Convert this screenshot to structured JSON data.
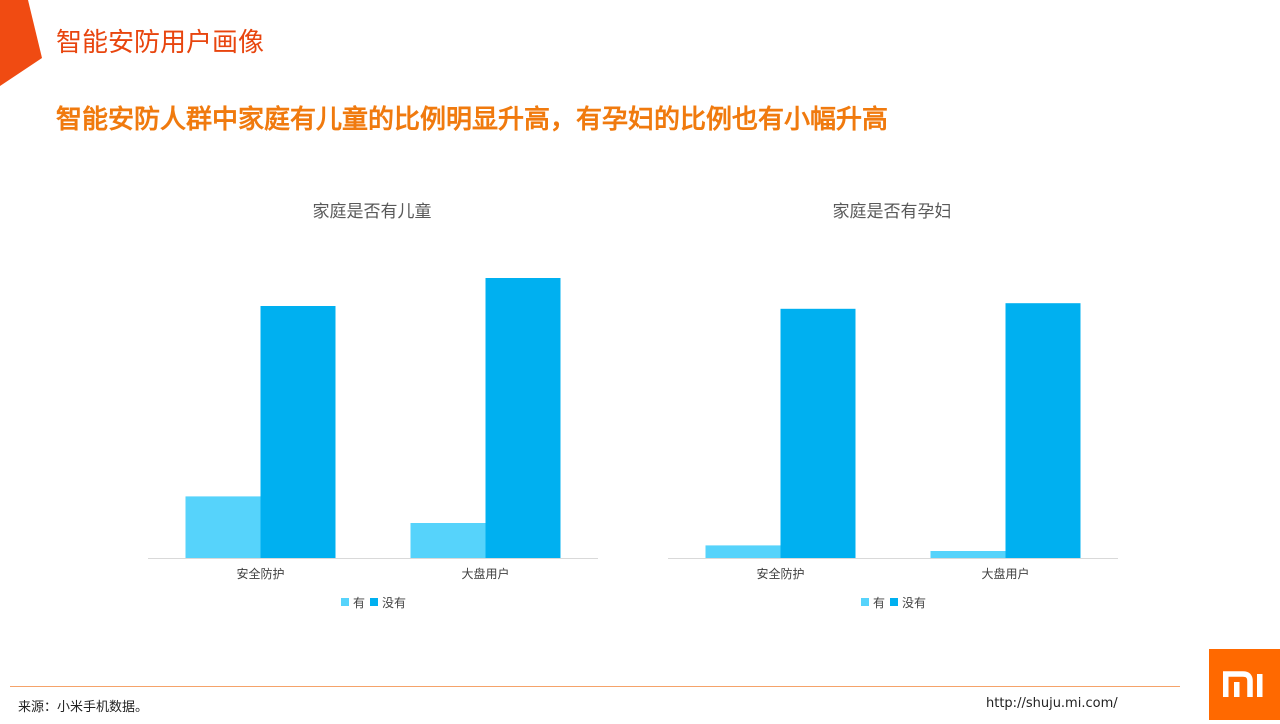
{
  "header": {
    "title": "智能安防用户画像",
    "subtitle": "智能安防人群中家庭有儿童的比例明显升高，有孕妇的比例也有小幅升高"
  },
  "colors": {
    "accent": "#E8450E",
    "subtitle": "#F07A0E",
    "series_yes": "#56D3FB",
    "series_no": "#00B0F0",
    "logo": "#FF6900"
  },
  "chart_data": [
    {
      "type": "bar",
      "title": "家庭是否有儿童",
      "categories": [
        "安全防护",
        "大盘用户"
      ],
      "series": [
        {
          "name": "有",
          "values": [
            22,
            12.5
          ]
        },
        {
          "name": "没有",
          "values": [
            90,
            100
          ]
        }
      ],
      "ylim": [
        0,
        100
      ],
      "grid": false,
      "legend": "bottom"
    },
    {
      "type": "bar",
      "title": "家庭是否有孕妇",
      "categories": [
        "安全防护",
        "大盘用户"
      ],
      "series": [
        {
          "name": "有",
          "values": [
            4.5,
            2.5
          ]
        },
        {
          "name": "没有",
          "values": [
            89,
            91
          ]
        }
      ],
      "ylim": [
        0,
        100
      ],
      "grid": false,
      "legend": "bottom"
    }
  ],
  "footer": {
    "source": "来源：小米手机数据。",
    "url": "http://shuju.mi.com/",
    "logo_text": "mi"
  }
}
